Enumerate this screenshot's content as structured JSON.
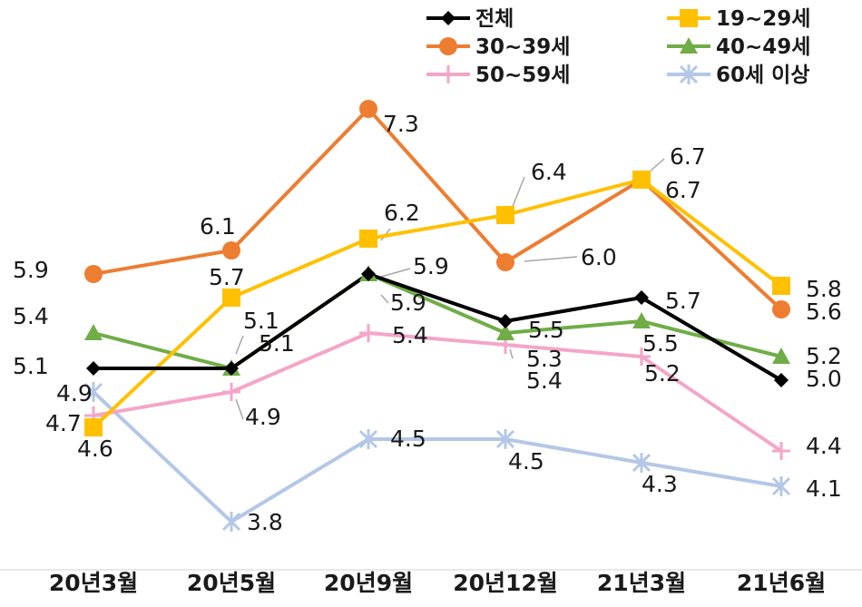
{
  "chart_data": {
    "type": "line",
    "title": "",
    "xlabel": "",
    "ylabel": "",
    "categories": [
      "20년3월",
      "20년5월",
      "20년9월",
      "20년12월",
      "21년3월",
      "21년6월"
    ],
    "ylim": [
      3.5,
      7.5
    ],
    "grid": false,
    "legend": "top-right",
    "series": [
      {
        "name": "전체",
        "color": "#000000",
        "marker": "diamond",
        "values": [
          5.1,
          5.1,
          5.9,
          5.5,
          5.7,
          5.0
        ],
        "labels": [
          "5.1",
          "5.1",
          "5.9",
          "5.5",
          "5.7",
          "5.0"
        ]
      },
      {
        "name": "19~29세",
        "color": "#FFC000",
        "marker": "square",
        "values": [
          4.6,
          5.7,
          6.2,
          6.4,
          6.7,
          5.8
        ],
        "labels": [
          "4.6",
          "5.7",
          "6.2",
          "6.4",
          "6.7",
          "5.8"
        ]
      },
      {
        "name": "30~39세",
        "color": "#ED7D31",
        "marker": "circle",
        "values": [
          5.9,
          6.1,
          7.3,
          6.0,
          6.7,
          5.6
        ],
        "labels": [
          "5.9",
          "6.1",
          "7.3",
          "6.0",
          "6.7",
          "5.6"
        ]
      },
      {
        "name": "40~49세",
        "color": "#70AD47",
        "marker": "triangle",
        "values": [
          5.4,
          5.1,
          5.9,
          5.4,
          5.5,
          5.2
        ],
        "labels": [
          "5.4",
          "5.1",
          "5.9",
          "5.4",
          "5.5",
          "5.2"
        ]
      },
      {
        "name": "50~59세",
        "color": "#F4A6C8",
        "marker": "plus",
        "values": [
          4.7,
          4.9,
          5.4,
          5.3,
          5.2,
          4.4
        ],
        "labels": [
          "4.7",
          "4.9",
          "5.4",
          "5.3",
          "5.2",
          "4.4"
        ]
      },
      {
        "name": "60세 이상",
        "color": "#B4C7E7",
        "marker": "star",
        "values": [
          4.9,
          3.8,
          4.5,
          4.5,
          4.3,
          4.1
        ],
        "labels": [
          "4.9",
          "3.8",
          "4.5",
          "4.5",
          "4.3",
          "4.1"
        ]
      }
    ]
  }
}
